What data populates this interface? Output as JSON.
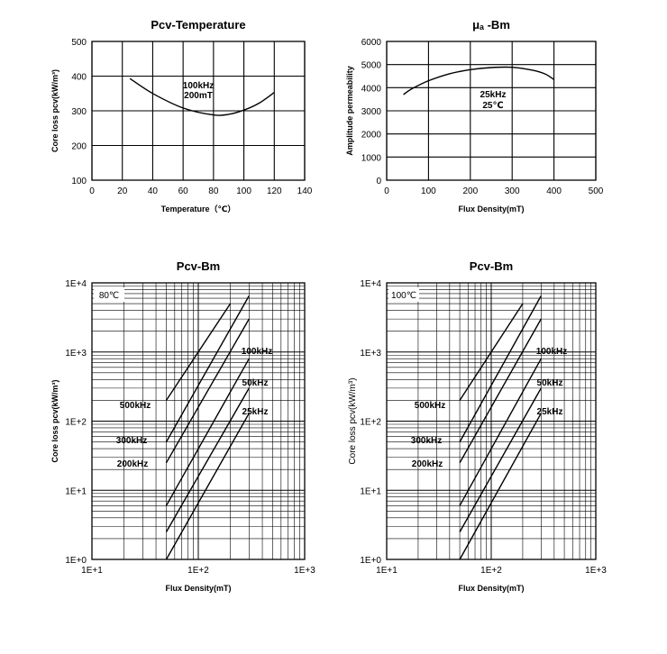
{
  "chart_data": [
    {
      "type": "line",
      "title": "Pcv-Temperature",
      "xlabel": "Temperature（℃）",
      "ylabel": "Core loss pcv(kW/m³)",
      "xlim": [
        0,
        140
      ],
      "ylim": [
        100,
        500
      ],
      "xticks": [
        0,
        20,
        40,
        60,
        80,
        100,
        120,
        140
      ],
      "yticks": [
        100,
        200,
        300,
        400,
        500
      ],
      "grid": true,
      "annotations": [
        "100kHz",
        "200mT"
      ],
      "series": [
        {
          "x": [
            25,
            40,
            60,
            80,
            90,
            100,
            110,
            120
          ],
          "y": [
            393,
            350,
            308,
            288,
            290,
            302,
            322,
            353
          ]
        }
      ]
    },
    {
      "type": "line",
      "title": "μₐ -Bm",
      "xlabel": "Flux Density(mT)",
      "ylabel": "Amplitude permeability",
      "xlim": [
        0,
        500
      ],
      "ylim": [
        0,
        6000
      ],
      "xticks": [
        0,
        100,
        200,
        300,
        400,
        500
      ],
      "yticks": [
        0,
        1000,
        2000,
        3000,
        4000,
        5000,
        6000
      ],
      "grid": true,
      "annotations": [
        "25kHz",
        "25℃"
      ],
      "series": [
        {
          "x": [
            40,
            60,
            100,
            150,
            200,
            250,
            300,
            350,
            380,
            400
          ],
          "y": [
            3700,
            3950,
            4300,
            4600,
            4780,
            4870,
            4880,
            4750,
            4580,
            4350
          ]
        }
      ]
    },
    {
      "type": "line",
      "title": "Pcv-Bm",
      "xlabel": "Flux Density(mT)",
      "ylabel": "Core loss pcv(kW/m³)",
      "xscale": "log",
      "yscale": "log",
      "xlim": [
        10,
        1000
      ],
      "ylim": [
        1,
        10000
      ],
      "xticks": [
        "1E+1",
        "1E+2",
        "1E+3"
      ],
      "yticks": [
        "1E+0",
        "1E+1",
        "1E+2",
        "1E+3",
        "1E+4"
      ],
      "grid": true,
      "condition": "80℃",
      "series": [
        {
          "name": "500kHz",
          "x": [
            50,
            200
          ],
          "y": [
            200,
            5000
          ]
        },
        {
          "name": "300kHz",
          "x": [
            50,
            300
          ],
          "y": [
            50,
            6500
          ]
        },
        {
          "name": "200kHz",
          "x": [
            50,
            300
          ],
          "y": [
            25,
            3000
          ]
        },
        {
          "name": "100kHz",
          "x": [
            50,
            300
          ],
          "y": [
            6,
            800
          ]
        },
        {
          "name": "50kHz",
          "x": [
            50,
            300
          ],
          "y": [
            2.5,
            300
          ]
        },
        {
          "name": "25kHz",
          "x": [
            50,
            300
          ],
          "y": [
            1,
            130
          ]
        }
      ]
    },
    {
      "type": "line",
      "title": "Pcv-Bm",
      "xlabel": "Flux Density(mT)",
      "ylabel": "Core loss pcv(kW/m³)",
      "xscale": "log",
      "yscale": "log",
      "xlim": [
        10,
        1000
      ],
      "ylim": [
        1,
        10000
      ],
      "xticks": [
        "1E+1",
        "1E+2",
        "1E+3"
      ],
      "yticks": [
        "1E+0",
        "1E+1",
        "1E+2",
        "1E+3",
        "1E+4"
      ],
      "grid": true,
      "condition": "100℃",
      "series": [
        {
          "name": "500kHz",
          "x": [
            50,
            200
          ],
          "y": [
            200,
            5000
          ]
        },
        {
          "name": "300kHz",
          "x": [
            50,
            300
          ],
          "y": [
            50,
            6500
          ]
        },
        {
          "name": "200kHz",
          "x": [
            50,
            300
          ],
          "y": [
            25,
            3000
          ]
        },
        {
          "name": "100kHz",
          "x": [
            50,
            300
          ],
          "y": [
            6,
            800
          ]
        },
        {
          "name": "50kHz",
          "x": [
            50,
            300
          ],
          "y": [
            2.5,
            300
          ]
        },
        {
          "name": "25kHz",
          "x": [
            50,
            300
          ],
          "y": [
            1,
            130
          ]
        }
      ]
    }
  ]
}
